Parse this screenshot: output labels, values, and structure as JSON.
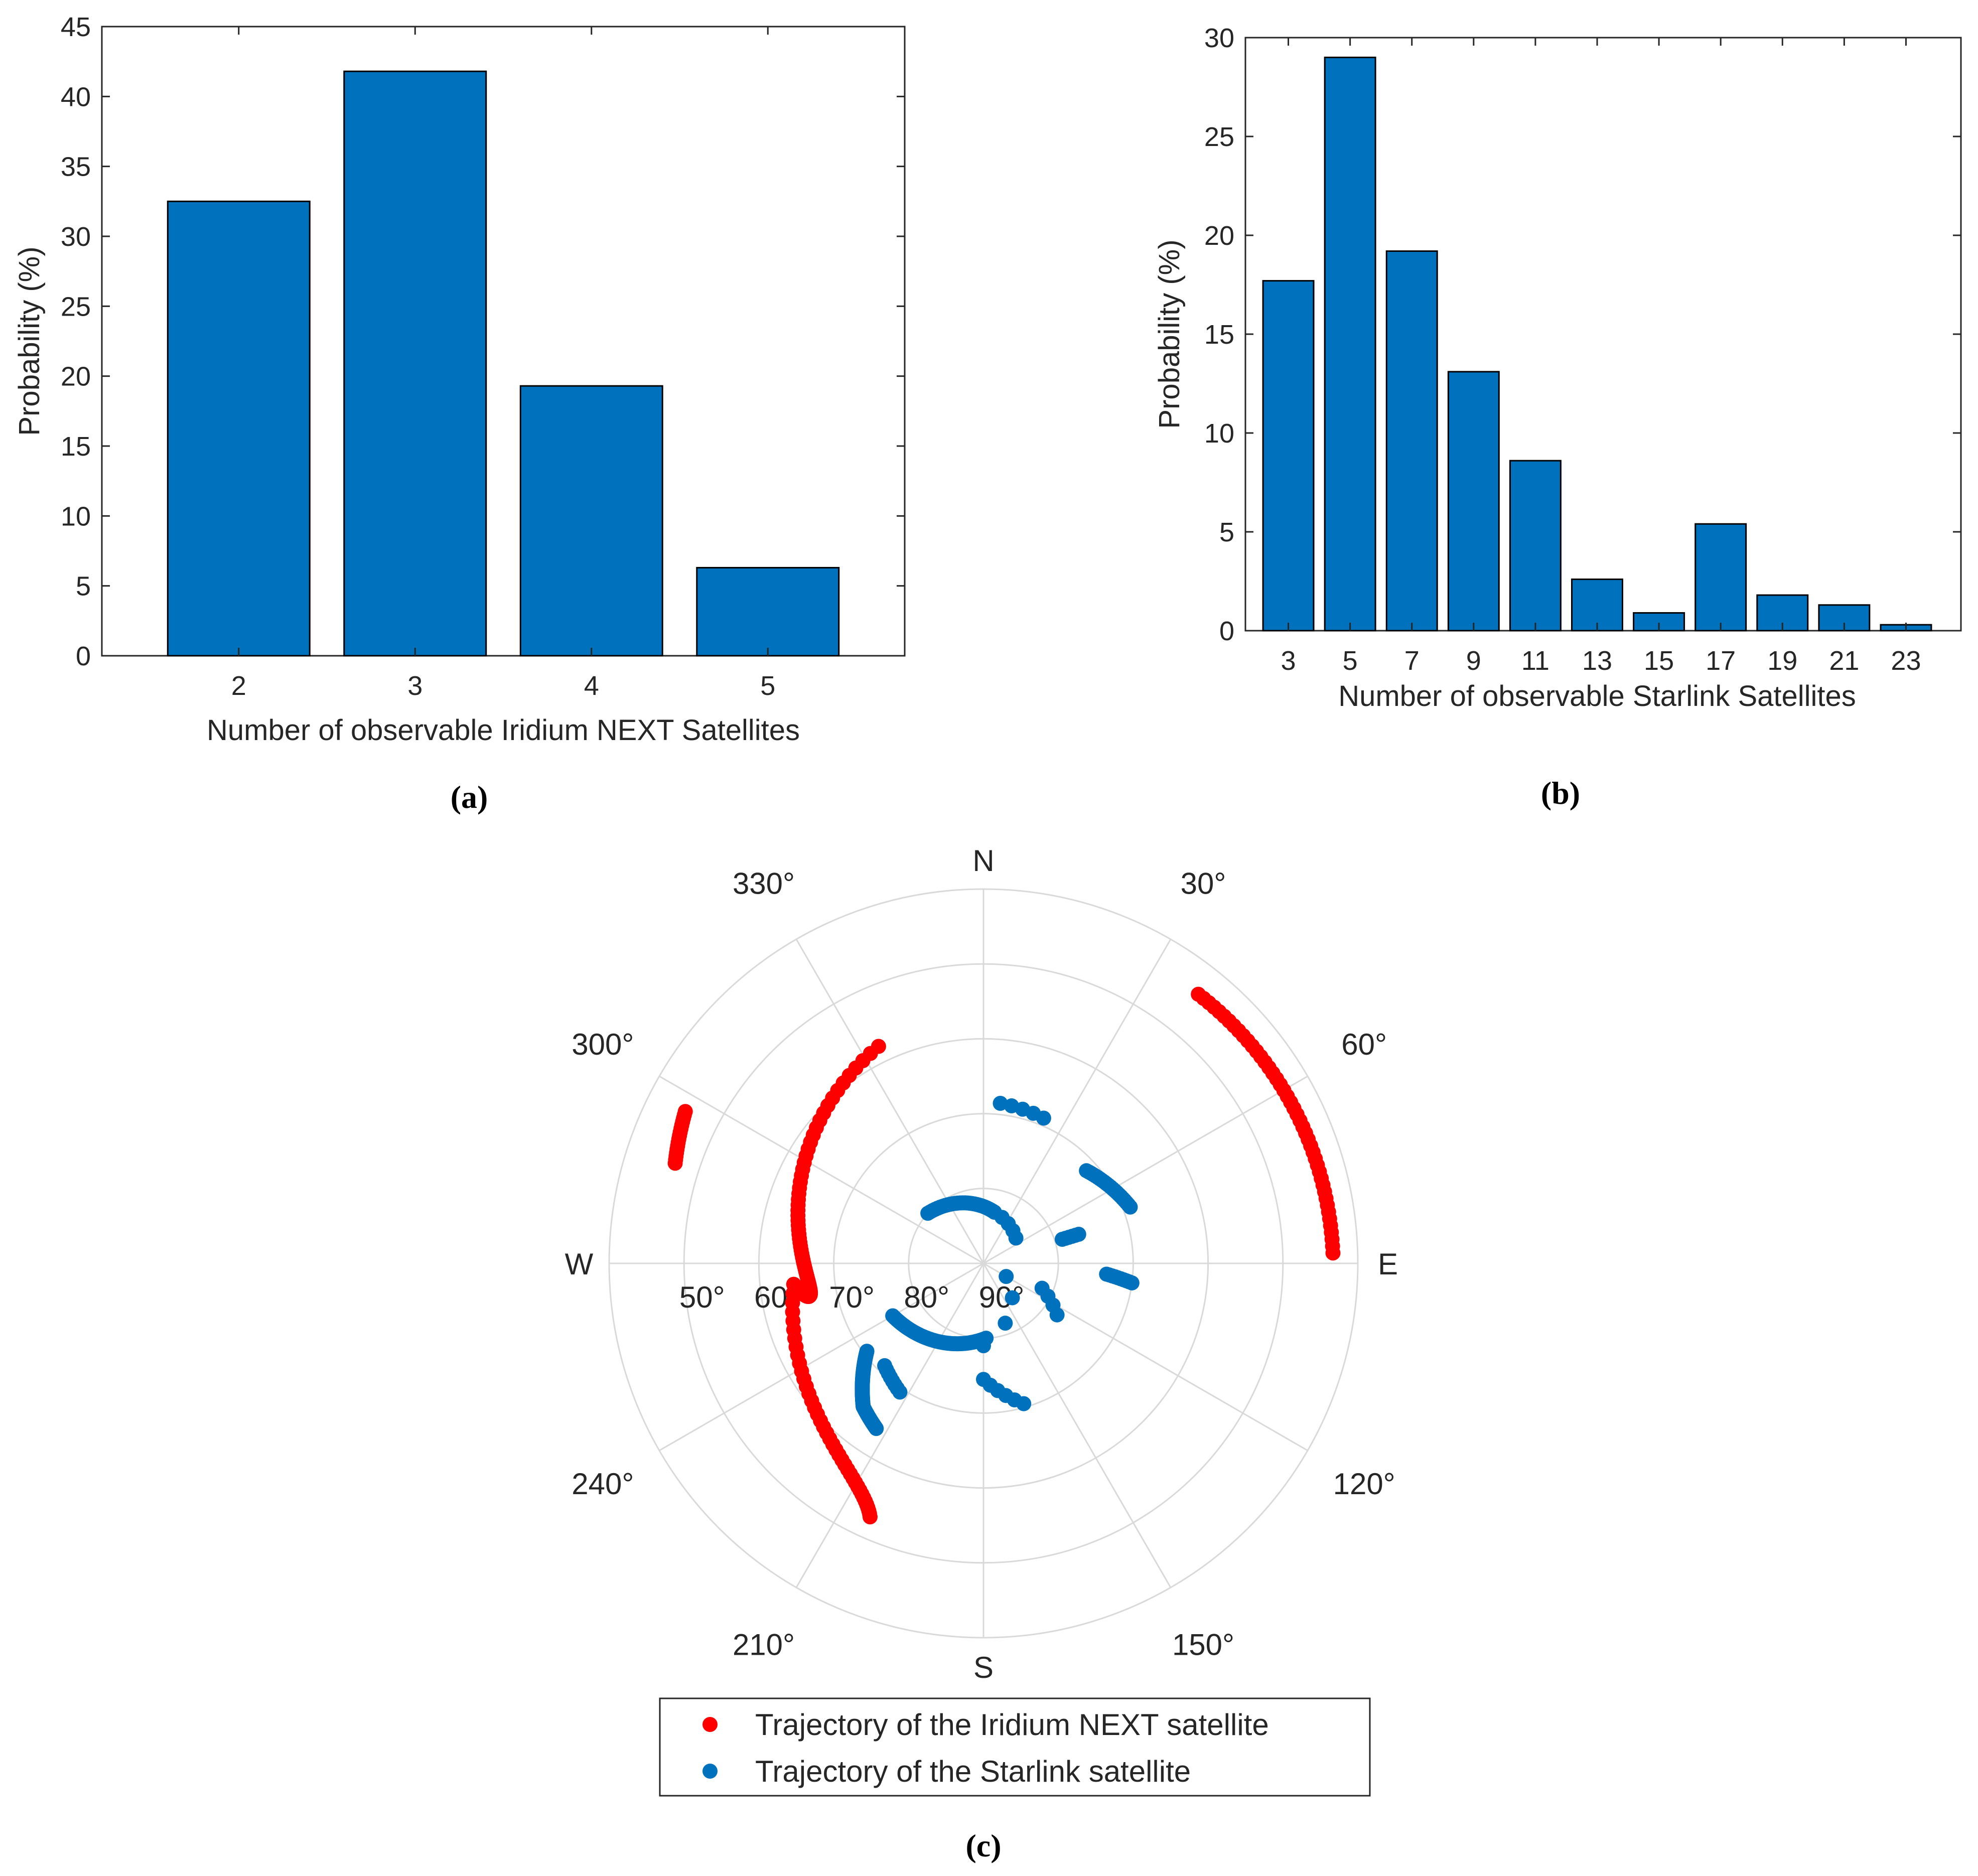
{
  "chart_data": [
    {
      "id": "a",
      "type": "bar",
      "caption": "(a)",
      "categories": [
        "2",
        "3",
        "4",
        "5"
      ],
      "values": [
        32.5,
        41.8,
        19.3,
        6.3
      ],
      "xlabel": "Number of observable Iridium NEXT Satellites",
      "ylabel": "Probability (%)",
      "ylim": [
        0,
        45
      ],
      "yticks": [
        0,
        5,
        10,
        15,
        20,
        25,
        30,
        35,
        40,
        45
      ],
      "bar_color": "#0072BD",
      "grid": false
    },
    {
      "id": "b",
      "type": "bar",
      "caption": "(b)",
      "categories": [
        "3",
        "5",
        "7",
        "9",
        "11",
        "13",
        "15",
        "17",
        "19",
        "21",
        "23"
      ],
      "values": [
        17.7,
        29.0,
        19.2,
        13.1,
        8.6,
        2.6,
        0.9,
        5.4,
        1.8,
        1.3,
        0.3
      ],
      "xlabel": "Number of observable Starlink Satellites",
      "ylabel": "Probability (%)",
      "ylim": [
        0,
        30
      ],
      "yticks": [
        0,
        5,
        10,
        15,
        20,
        25,
        30
      ],
      "bar_color": "#0072BD",
      "grid": false
    },
    {
      "id": "c",
      "type": "scatter",
      "subtype": "polar-skyplot",
      "caption": "(c)",
      "cardinal_labels": {
        "north": "N",
        "east": "E",
        "south": "S",
        "west": "W"
      },
      "azimuth_labels": [
        "30°",
        "60°",
        "120°",
        "150°",
        "210°",
        "240°",
        "300°",
        "330°"
      ],
      "azimuth_values": [
        30,
        60,
        120,
        150,
        210,
        240,
        300,
        330
      ],
      "elevation_labels": [
        "50°",
        "60°",
        "70°",
        "80°",
        "90°"
      ],
      "elevation_values": [
        50,
        60,
        70,
        80,
        90
      ],
      "elevation_range": [
        40,
        90
      ],
      "legend": {
        "location": "bottom",
        "entries": [
          {
            "label": "Trajectory of the Iridium NEXT satellite",
            "color": "#FF0000"
          },
          {
            "label": "Trajectory of the Starlink satellite",
            "color": "#0072BD"
          }
        ]
      },
      "series": [
        {
          "name": "Trajectory of the Iridium NEXT satellite",
          "color": "#FF0000",
          "tracks": [
            {
              "from": {
                "az": 297.0,
                "el": 45.3
              },
              "to": {
                "az": 288.0,
                "el": 46.7
              },
              "points": 16
            },
            {
              "from": {
                "az": 334.2,
                "el": 57.8
              },
              "to": {
                "az": 263.7,
                "el": 64.5
              },
              "points": 75,
              "via": {
                "az": 270.0,
                "el": 66.0
              }
            },
            {
              "from": {
                "az": 263.7,
                "el": 64.5
              },
              "to": {
                "az": 204.1,
                "el": 52.9
              },
              "points": 40,
              "via": {
                "az": 222.0,
                "el": 59.0
              }
            },
            {
              "from": {
                "az": 38.6,
                "el": 44.0
              },
              "to": {
                "az": 88.3,
                "el": 43.3
              },
              "points": 45
            }
          ]
        },
        {
          "name": "Trajectory of the Starlink satellite",
          "color": "#0072BD",
          "tracks": [
            {
              "from": {
                "az": 6.0,
                "el": 68.5
              },
              "to": {
                "az": 22.5,
                "el": 69.0
              },
              "points": 5
            },
            {
              "from": {
                "az": 312.0,
                "el": 80.0
              },
              "to": {
                "az": 12.0,
                "el": 83.0
              },
              "points": 30
            },
            {
              "from": {
                "az": 12.0,
                "el": 83.0
              },
              "to": {
                "az": 52.0,
                "el": 84.5
              },
              "points": 5
            },
            {
              "from": {
                "az": 120.0,
                "el": 86.5
              },
              "to": {
                "az": 180.0,
                "el": 79.0
              },
              "points": 4
            },
            {
              "from": {
                "az": 73.0,
                "el": 79.0
              },
              "to": {
                "az": 73.0,
                "el": 76.7
              },
              "points": 6
            },
            {
              "from": {
                "az": 48.0,
                "el": 71.5
              },
              "to": {
                "az": 69.0,
                "el": 69.0
              },
              "points": 22
            },
            {
              "from": {
                "az": 95.0,
                "el": 73.5
              },
              "to": {
                "az": 97.5,
                "el": 70.0
              },
              "points": 10
            },
            {
              "from": {
                "az": 113.0,
                "el": 81.5
              },
              "to": {
                "az": 125.0,
                "el": 78.0
              },
              "points": 4
            },
            {
              "from": {
                "az": 233.0,
                "el": 70.5
              },
              "to": {
                "az": 220.0,
                "el": 65.0
              },
              "points": 80
            },
            {
              "from": {
                "az": 220.0,
                "el": 65.0
              },
              "to": {
                "az": 213.0,
                "el": 63.7
              },
              "points": 20
            },
            {
              "from": {
                "az": 240.0,
                "el": 76.0
              },
              "to": {
                "az": 178.0,
                "el": 80.0
              },
              "points": 60
            },
            {
              "from": {
                "az": 224.0,
                "el": 71.0
              },
              "to": {
                "az": 213.0,
                "el": 69.5
              },
              "points": 8
            },
            {
              "from": {
                "az": 180.0,
                "el": 74.5
              },
              "to": {
                "az": 164.0,
                "el": 70.5
              },
              "points": 6
            }
          ]
        }
      ]
    }
  ]
}
